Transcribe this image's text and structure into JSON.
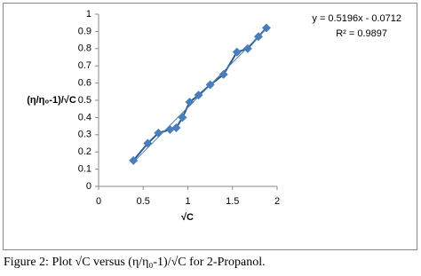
{
  "chart_data": {
    "type": "scatter",
    "x_label": "√C",
    "y_label": "(η/η₀-1)/√C",
    "caption": "Figure 2: Plot √C versus (η/η₀-1)/√C for 2-Propanol.",
    "annotations": [
      "y = 0.5196x - 0.0712",
      "R² = 0.9897"
    ],
    "series": [
      {
        "color": "#4a7ebb",
        "x": [
          0.39,
          0.55,
          0.67,
          0.8,
          0.87,
          0.94,
          1.02,
          1.12,
          1.25,
          1.4,
          1.55,
          1.67,
          1.79,
          1.88
        ],
        "values": [
          0.15,
          0.25,
          0.31,
          0.33,
          0.34,
          0.4,
          0.49,
          0.53,
          0.59,
          0.65,
          0.78,
          0.8,
          0.87,
          0.92
        ]
      }
    ],
    "xlim": [
      0,
      2
    ],
    "xticks": [
      0,
      0.5,
      1,
      1.5,
      2
    ],
    "ylim": [
      0,
      1
    ],
    "yticks": [
      0,
      0.1,
      0.2,
      0.3,
      0.4,
      0.5,
      0.6,
      0.7,
      0.8,
      0.9,
      1
    ],
    "trendline": true,
    "connect_points": true,
    "grid": false
  }
}
